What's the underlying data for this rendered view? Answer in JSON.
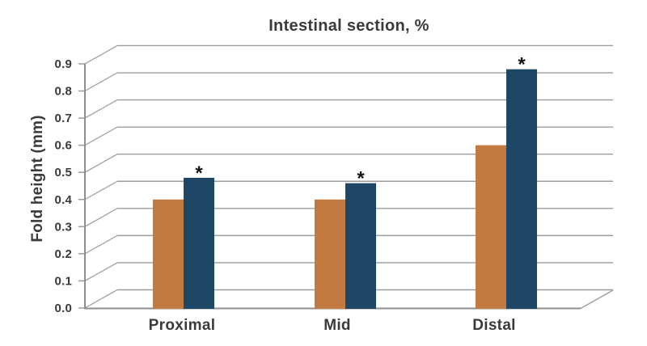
{
  "title": "Intestinal section, %",
  "y_axis": {
    "label": "Fold height (mm)",
    "tick_labels": [
      "0.0",
      "0.1",
      "0.2",
      "0.3",
      "0.4",
      "0.5",
      "0.6",
      "0.7",
      "0.8",
      "0.9"
    ]
  },
  "x_axis": {
    "categories": [
      "Proximal",
      "Mid",
      "Distal"
    ]
  },
  "annotations": {
    "significance_marker": "*",
    "note": "asterisk shown above the navy bar in every category"
  },
  "colors": {
    "orange_series": "#C27A40",
    "navy_series": "#1E4766",
    "grid": "#9C9C9C",
    "axis": "#8F8F8F",
    "text": "#3A3A3A",
    "background": "#FFFFFF"
  },
  "chart_data": {
    "type": "bar",
    "title": "Intestinal section, %",
    "xlabel": "",
    "ylabel": "Fold height (mm)",
    "ylim": [
      0,
      0.9
    ],
    "y_tick_step": 0.1,
    "grid": "horizontal gridlines drawn on pseudo-3D back wall with oblique depth offset",
    "legend_position": "none",
    "categories": [
      "Proximal",
      "Mid",
      "Distal"
    ],
    "series": [
      {
        "name": "series 1 (orange)",
        "color": "#C27A40",
        "values": [
          0.4,
          0.4,
          0.6
        ],
        "significance": [
          "",
          "",
          ""
        ]
      },
      {
        "name": "series 2 (navy)",
        "color": "#1E4766",
        "values": [
          0.48,
          0.46,
          0.88
        ],
        "significance": [
          "*",
          "*",
          "*"
        ]
      }
    ]
  }
}
